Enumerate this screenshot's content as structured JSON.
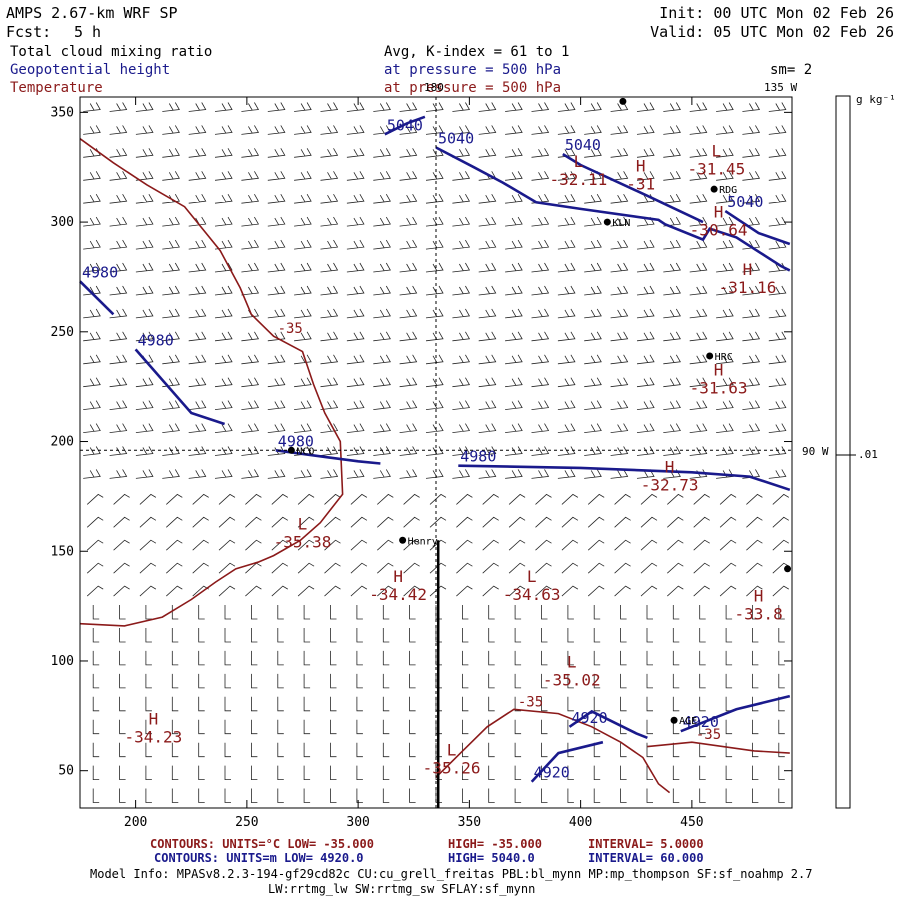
{
  "header": {
    "model": "AMPS 2.67-km WRF SP",
    "fcst_label": "Fcst:",
    "fcst_value": "5 h",
    "init": "Init: 00 UTC Mon 02 Feb 26",
    "valid": "Valid: 05 UTC Mon 02 Feb 26",
    "field1": "Total cloud mixing ratio",
    "field2": "Geopotential height",
    "field3": "Temperature",
    "avg": "Avg, K-index =  61 to   1",
    "pressure_blue": "at pressure =  500 hPa",
    "pressure_red": "at pressure =  500 hPa",
    "sm": "sm= 2"
  },
  "footer": {
    "temp_contours": "CONTOURS:  UNITS=°C  LOW= -35.000",
    "temp_high": "HIGH= -35.000",
    "temp_interval": "INTERVAL=   5.0000",
    "hgt_contours": "CONTOURS:  UNITS=m  LOW=  4920.0",
    "hgt_high": "HIGH=  5040.0",
    "hgt_interval": "INTERVAL=   60.000",
    "model_info_1": "Model Info: MPASv8.2.3-194-gf29cd82c CU:cu_grell_freitas PBL:bl_mynn MP:mp_thompson SF:sf_noahmp 2.7",
    "model_info_2": "LW:rrtmg_lw SW:rrtmg_sw SFLAY:sf_mynn"
  },
  "colorbar": {
    "unit": "g kg⁻¹",
    "tick_label": ".01"
  },
  "meridians": {
    "m180": "180",
    "m135": "135 W",
    "m90": "90 W"
  },
  "colors": {
    "height": "#1a1a8c",
    "temperature": "#8b1a1a",
    "barbs": "#000000"
  },
  "chart_data": {
    "type": "contour",
    "title": "AMPS 2.67-km WRF SP 500 hPa",
    "xlim": [
      175,
      495
    ],
    "ylim": [
      33,
      357
    ],
    "xticks": [
      200,
      250,
      300,
      350,
      400,
      450
    ],
    "yticks": [
      50,
      100,
      150,
      200,
      250,
      300,
      350
    ],
    "grid": false,
    "height_contours": [
      {
        "label": "5040",
        "points": [
          [
            335,
            334
          ],
          [
            352,
            325
          ],
          [
            365,
            318
          ],
          [
            380,
            309
          ],
          [
            400,
            306
          ],
          [
            435,
            301
          ],
          [
            438,
            299
          ],
          [
            455,
            292
          ],
          [
            458,
            297
          ],
          [
            470,
            293
          ],
          [
            490,
            280
          ],
          [
            494,
            278
          ]
        ]
      },
      {
        "label": "5040",
        "points": [
          [
            312,
            340
          ],
          [
            322,
            345
          ],
          [
            330,
            348
          ]
        ]
      },
      {
        "label": "5040",
        "points": [
          [
            392,
            331
          ],
          [
            400,
            326
          ],
          [
            430,
            312
          ],
          [
            455,
            300
          ]
        ]
      },
      {
        "label": "5040",
        "points": [
          [
            465,
            305
          ],
          [
            480,
            295
          ],
          [
            494,
            290
          ]
        ]
      },
      {
        "label": "4980",
        "points": [
          [
            175,
            273
          ],
          [
            190,
            258
          ]
        ]
      },
      {
        "label": "4980",
        "points": [
          [
            200,
            242
          ],
          [
            225,
            213
          ],
          [
            240,
            208
          ]
        ]
      },
      {
        "label": "4980",
        "points": [
          [
            263,
            196
          ],
          [
            285,
            193
          ],
          [
            300,
            191
          ],
          [
            310,
            190
          ]
        ]
      },
      {
        "label": "4980",
        "points": [
          [
            345,
            189
          ],
          [
            400,
            188
          ],
          [
            450,
            186
          ],
          [
            476,
            184
          ],
          [
            494,
            178
          ]
        ]
      },
      {
        "label": "4920",
        "points": [
          [
            395,
            70
          ],
          [
            405,
            77
          ],
          [
            425,
            67
          ],
          [
            430,
            65
          ]
        ]
      },
      {
        "label": "4920",
        "points": [
          [
            445,
            68
          ],
          [
            470,
            78
          ],
          [
            494,
            84
          ]
        ]
      },
      {
        "label": "4920",
        "points": [
          [
            378,
            45
          ],
          [
            390,
            58
          ],
          [
            410,
            63
          ]
        ]
      }
    ],
    "temperature_contours": [
      {
        "label": "-35",
        "points": [
          [
            175,
            338
          ],
          [
            190,
            327
          ],
          [
            205,
            317
          ],
          [
            222,
            307
          ],
          [
            238,
            287
          ],
          [
            247,
            270
          ],
          [
            252,
            258
          ],
          [
            262,
            248
          ],
          [
            275,
            241
          ],
          [
            280,
            226
          ],
          [
            285,
            213
          ],
          [
            292,
            200
          ],
          [
            293,
            176
          ],
          [
            283,
            163
          ],
          [
            274,
            155
          ],
          [
            262,
            148
          ],
          [
            255,
            145
          ],
          [
            245,
            142
          ],
          [
            236,
            136
          ],
          [
            225,
            128
          ],
          [
            212,
            120
          ],
          [
            195,
            116
          ],
          [
            175,
            117
          ]
        ]
      },
      {
        "label": "-35",
        "points": [
          [
            430,
            61
          ],
          [
            450,
            63
          ],
          [
            478,
            59
          ],
          [
            494,
            58
          ]
        ]
      },
      {
        "label": "-35",
        "points": [
          [
            335,
            47
          ],
          [
            346,
            58
          ],
          [
            358,
            70
          ],
          [
            370,
            78
          ],
          [
            390,
            76
          ],
          [
            405,
            70
          ],
          [
            418,
            63
          ],
          [
            428,
            56
          ],
          [
            435,
            44
          ],
          [
            440,
            40
          ]
        ]
      }
    ],
    "highs_lows": [
      {
        "type": "L",
        "value": "-32.11",
        "x": 399,
        "y": 325
      },
      {
        "type": "H",
        "value": "-31",
        "x": 427,
        "y": 323
      },
      {
        "type": "L",
        "value": "-31.45",
        "x": 461,
        "y": 330
      },
      {
        "type": "H",
        "value": "-30.64",
        "x": 462,
        "y": 302
      },
      {
        "type": "H",
        "value": "-31.16",
        "x": 475,
        "y": 276
      },
      {
        "type": "H",
        "value": "-31.63",
        "x": 462,
        "y": 230
      },
      {
        "type": "H",
        "value": "-32.73",
        "x": 440,
        "y": 186
      },
      {
        "type": "L",
        "value": "-35.38",
        "x": 275,
        "y": 160
      },
      {
        "type": "H",
        "value": "-34.42",
        "x": 318,
        "y": 136
      },
      {
        "type": "L",
        "value": "-34.63",
        "x": 378,
        "y": 136
      },
      {
        "type": "H",
        "value": "-33.8",
        "x": 480,
        "y": 127
      },
      {
        "type": "L",
        "value": "-35.02",
        "x": 396,
        "y": 97
      },
      {
        "type": "H",
        "value": "-34.23",
        "x": 208,
        "y": 71
      },
      {
        "type": "L",
        "value": "-35.26",
        "x": 342,
        "y": 57
      }
    ],
    "stations": [
      {
        "name": "KLN",
        "x": 412,
        "y": 300
      },
      {
        "name": "RDG",
        "x": 460,
        "y": 315
      },
      {
        "name": "HRC",
        "x": 458,
        "y": 239
      },
      {
        "name": "NCO",
        "x": 270,
        "y": 196
      },
      {
        "name": "Henry",
        "x": 320,
        "y": 155
      },
      {
        "name": "AGE",
        "x": 442,
        "y": 73
      },
      {
        "name": "",
        "x": 419,
        "y": 355
      },
      {
        "name": "",
        "x": 493,
        "y": 142
      }
    ],
    "reference_lines": {
      "meridian_180_x": 335,
      "meridian_90W_y": 196,
      "solid_meridian_x": 336,
      "solid_meridian_y_range": [
        33,
        155
      ]
    },
    "colorbar_range": [
      0,
      0.02
    ]
  }
}
